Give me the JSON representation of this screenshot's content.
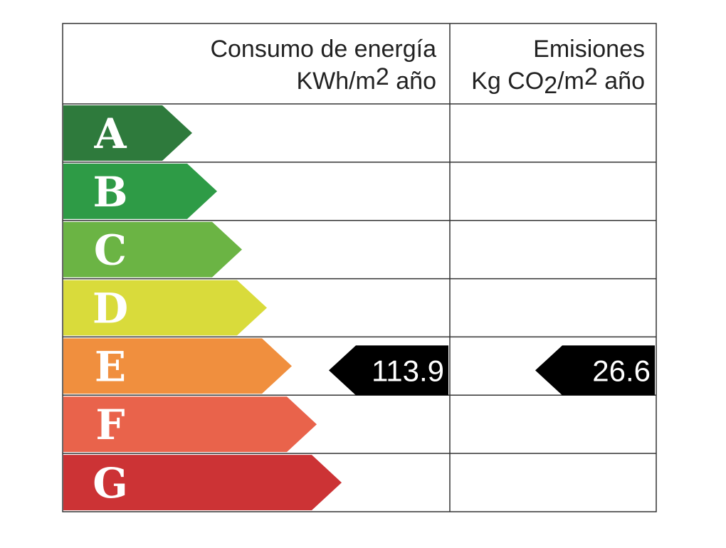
{
  "header": {
    "energy_title": "Consumo de energía",
    "energy_unit": [
      "KWh/m",
      "2",
      " año"
    ],
    "emissions_title": "Emisiones",
    "emissions_unit": [
      "Kg CO",
      "2",
      "/m",
      "2",
      " año"
    ]
  },
  "ratings": [
    {
      "letter": "A",
      "color": "#2e7a3c"
    },
    {
      "letter": "B",
      "color": "#2e9b46"
    },
    {
      "letter": "C",
      "color": "#6bb444"
    },
    {
      "letter": "D",
      "color": "#d9db3b"
    },
    {
      "letter": "E",
      "color": "#f08f3e"
    },
    {
      "letter": "F",
      "color": "#e9634b"
    },
    {
      "letter": "G",
      "color": "#cc3335"
    }
  ],
  "energy": {
    "value": 113.9,
    "rating": "E"
  },
  "emissions": {
    "value": 26.6,
    "rating": "E"
  }
}
